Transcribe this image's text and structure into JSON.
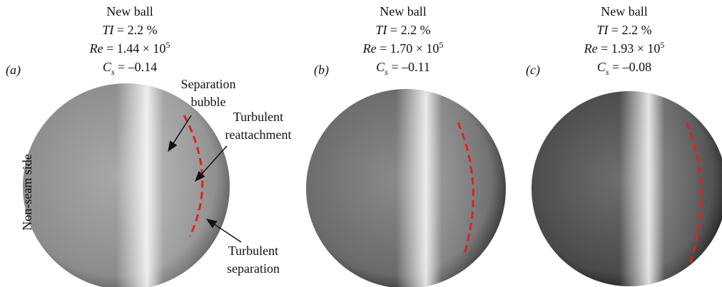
{
  "figure": {
    "side_label": "Non-seam side",
    "panels": [
      {
        "label": "(a)",
        "title": "New ball",
        "ti_symbol": "TI",
        "ti_text": " = 2.2 %",
        "re_symbol": "Re",
        "re_text": " = 1.44 × 10",
        "re_exp": "5",
        "cs_symbol": "C",
        "cs_sub": "s",
        "cs_text": " = –0.14"
      },
      {
        "label": "(b)",
        "title": "New ball",
        "ti_symbol": "TI",
        "ti_text": " = 2.2 %",
        "re_symbol": "Re",
        "re_text": " = 1.70 × 10",
        "re_exp": "5",
        "cs_symbol": "C",
        "cs_sub": "s",
        "cs_text": " = –0.11"
      },
      {
        "label": "(c)",
        "title": "New ball",
        "ti_symbol": "TI",
        "ti_text": " = 2.2 %",
        "re_symbol": "Re",
        "re_text": " = 1.93 × 10",
        "re_exp": "5",
        "cs_symbol": "C",
        "cs_sub": "s",
        "cs_text": " = –0.08"
      }
    ],
    "annotations": [
      {
        "lines": [
          "Separation",
          "bubble"
        ]
      },
      {
        "lines": [
          "Turbulent",
          "reattachment"
        ]
      },
      {
        "lines": [
          "Turbulent",
          "separation"
        ]
      }
    ]
  }
}
